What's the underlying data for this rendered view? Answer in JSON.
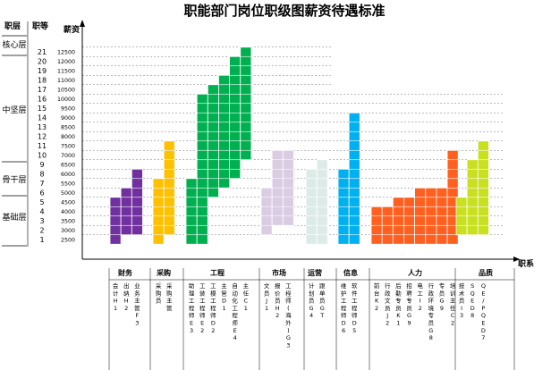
{
  "chart_data": {
    "type": "bar",
    "title": "职能部门岗位职级图薪资待遇标准",
    "axis_headers": {
      "tier": "职层",
      "grade": "职等",
      "salary": "薪资",
      "job_family": "职系"
    },
    "tiers": [
      {
        "name": "核心层",
        "grade_range": [
          20,
          21
        ]
      },
      {
        "name": "中坚层",
        "grade_range": [
          9,
          19
        ]
      },
      {
        "name": "骨干层",
        "grade_range": [
          5,
          8
        ]
      },
      {
        "name": "基础层",
        "grade_range": [
          1,
          4
        ]
      }
    ],
    "grades": [
      "1",
      "2",
      "3",
      "4",
      "5",
      "6",
      "7",
      "8",
      "9",
      "10",
      "11",
      "12",
      "13",
      "14",
      "15",
      "16",
      "17",
      "18",
      "19",
      "20",
      "21"
    ],
    "salary_ticks": [
      "2500",
      "3000",
      "3500",
      "4000",
      "4500",
      "5000",
      "5500",
      "6000",
      "6500",
      "7000",
      "7500",
      "8000",
      "8500",
      "9000",
      "9500",
      "10000",
      "10500",
      "11000",
      "11500",
      "12000",
      "12500"
    ],
    "ylim": [
      2500,
      12500
    ],
    "groups": [
      {
        "name": "财务",
        "series": [
          {
            "code": "会计 H1",
            "color": "#7030a0",
            "min": 2500,
            "max": 4500
          },
          {
            "code": "出纳 H2",
            "color": "#7030a0",
            "min": 3000,
            "max": 5000
          },
          {
            "code": "业务主管 F3",
            "color": "#7030a0",
            "min": 3000,
            "max": 6000
          }
        ]
      },
      {
        "name": "采购",
        "series": [
          {
            "code": "采购员",
            "color": "#ffc000",
            "min": 2500,
            "max": 5500
          },
          {
            "code": "采购主管",
            "color": "#ffc000",
            "min": 3000,
            "max": 7500
          }
        ]
      },
      {
        "name": "工程",
        "series": [
          {
            "code": "助理工程师 E3",
            "color": "#00b050",
            "min": 2500,
            "max": 5500
          },
          {
            "code": "工装工程师 E2",
            "color": "#00b050",
            "min": 2500,
            "max": 10000
          },
          {
            "code": "工模工程师 D2",
            "color": "#00b050",
            "min": 5000,
            "max": 10500
          },
          {
            "code": "主管 D1",
            "color": "#00b050",
            "min": 5500,
            "max": 11000
          },
          {
            "code": "自动化工程师 E4",
            "color": "#00b050",
            "min": 6000,
            "max": 12000
          },
          {
            "code": "主任 C1",
            "color": "#00b050",
            "min": 7000,
            "max": 12500
          }
        ]
      },
      {
        "name": "市场",
        "series": [
          {
            "code": "文员 J1",
            "color": "#d9cce3",
            "min": 3000,
            "max": 5000
          },
          {
            "code": "报价员 H2",
            "color": "#d9cce3",
            "min": 3500,
            "max": 7000
          },
          {
            "code": "工程师 G3",
            "color": "#d9cce3",
            "min": 3500,
            "max": 7000
          }
        ]
      },
      {
        "name": "运营",
        "series": [
          {
            "code": "计划员 G4",
            "color": "#ddebe8",
            "min": 2500,
            "max": 6000
          },
          {
            "code": "跟单员 GT",
            "color": "#ddebe8",
            "min": 2500,
            "max": 6500
          }
        ]
      },
      {
        "name": "信息",
        "series": [
          {
            "code": "维护工程师 D6",
            "color": "#00b0f0",
            "min": 2500,
            "max": 6000
          },
          {
            "code": "软件工程师 D5",
            "color": "#00b0f0",
            "min": 2500,
            "max": 9000
          }
        ]
      },
      {
        "name": "人力",
        "series": [
          {
            "code": "前台 K2",
            "color": "#ff6020",
            "min": 2500,
            "max": 4000
          },
          {
            "code": "行政文员 J2",
            "color": "#ff6020",
            "min": 2500,
            "max": 4000
          },
          {
            "code": "后勤专员 K1",
            "color": "#ff6020",
            "min": 2500,
            "max": 4500
          },
          {
            "code": "招聘专员 G9",
            "color": "#ff6020",
            "min": 2500,
            "max": 4500
          },
          {
            "code": "电工 I2",
            "color": "#ff6020",
            "min": 2500,
            "max": 5000
          },
          {
            "code": "行政环境专员 G8",
            "color": "#ff6020",
            "min": 2500,
            "max": 5000
          },
          {
            "code": "专员 G9",
            "color": "#ff6020",
            "min": 2500,
            "max": 5000
          },
          {
            "code": "培训主任 C2",
            "color": "#ff6020",
            "min": 2500,
            "max": 7000
          }
        ]
      },
      {
        "name": "品质",
        "series": [
          {
            "code": "技术员 I3",
            "color": "#c8e020",
            "min": 3000,
            "max": 4500
          },
          {
            "code": "SQE D8",
            "color": "#c8e020",
            "min": 3000,
            "max": 6500
          },
          {
            "code": "QE/PQE D7",
            "color": "#c8e020",
            "min": 3000,
            "max": 7500
          }
        ]
      }
    ],
    "column_labels": [
      "会计H1",
      "出纳H2",
      "业务主管F3",
      "采购员",
      "采购主管",
      "助理工程师E3",
      "工装工程师E2",
      "工模工程师D2",
      "主管D1",
      "自动化工程师E4",
      "主任C1",
      "文员J1",
      "报价员H2",
      "工程师(海外)G3",
      "计划员G4",
      "跟单员GT",
      "维护工程师D6",
      "软件工程师D5",
      "前台K2",
      "行政文员J2",
      "后勤专员K1",
      "招聘专员G9",
      "电工I2",
      "行政环境专员G8",
      "专员G9",
      "培训主任C2",
      "技术员I3",
      "SQED8",
      "QE/PQED7"
    ]
  }
}
